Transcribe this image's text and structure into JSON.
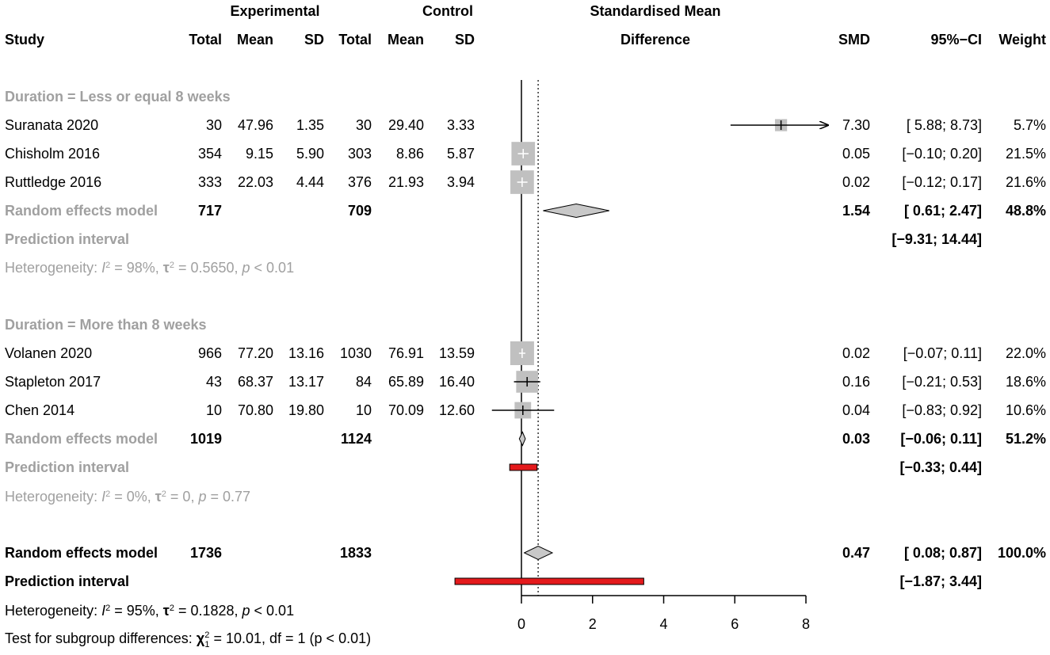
{
  "chart_data": {
    "type": "forest",
    "header": {
      "group_experimental": "Experimental",
      "group_control": "Control",
      "effect_title_line1": "Standardised Mean",
      "effect_title_line2": "Difference",
      "col_study": "Study",
      "col_total": "Total",
      "col_mean": "Mean",
      "col_sd": "SD",
      "col_smd": "SMD",
      "col_ci": "95%−CI",
      "col_weight": "Weight"
    },
    "axis": {
      "xlim": [
        0,
        8
      ],
      "ticks": [
        0,
        2,
        4,
        6,
        8
      ],
      "null_line": 0,
      "pooled_line": 0.47
    },
    "subgroups": [
      {
        "label": "Duration = Less or equal 8 weeks",
        "studies": [
          {
            "name": "Suranata 2020",
            "e_total": "30",
            "e_mean": "47.96",
            "e_sd": "1.35",
            "c_total": "30",
            "c_mean": "29.40",
            "c_sd": "3.33",
            "smd": 7.3,
            "lower": 5.88,
            "upper": 8.73,
            "smd_text": "7.30",
            "ci_text": "[ 5.88;  8.73]",
            "weight_text": "5.7%",
            "weight": 5.7
          },
          {
            "name": "Chisholm 2016",
            "e_total": "354",
            "e_mean": "9.15",
            "e_sd": "5.90",
            "c_total": "303",
            "c_mean": "8.86",
            "c_sd": "5.87",
            "smd": 0.05,
            "lower": -0.1,
            "upper": 0.2,
            "smd_text": "0.05",
            "ci_text": "[−0.10;  0.20]",
            "weight_text": "21.5%",
            "weight": 21.5
          },
          {
            "name": "Ruttledge 2016",
            "e_total": "333",
            "e_mean": "22.03",
            "e_sd": "4.44",
            "c_total": "376",
            "c_mean": "21.93",
            "c_sd": "3.94",
            "smd": 0.02,
            "lower": -0.12,
            "upper": 0.17,
            "smd_text": "0.02",
            "ci_text": "[−0.12;  0.17]",
            "weight_text": "21.6%",
            "weight": 21.6
          }
        ],
        "model": {
          "label": "Random effects model",
          "e_total": "717",
          "c_total": "709",
          "smd": 1.54,
          "lower": 0.61,
          "upper": 2.47,
          "smd_text": "1.54",
          "ci_text": "[ 0.61;  2.47]",
          "weight_text": "48.8%"
        },
        "prediction": {
          "label": "Prediction interval",
          "lower": -9.31,
          "upper": 14.44,
          "ci_text": "[−9.31; 14.44]"
        },
        "heterogeneity": {
          "prefix": "Heterogeneity: ",
          "i2": "98%",
          "tau2": "0.5650",
          "p": "< 0.01"
        }
      },
      {
        "label": "Duration = More than 8 weeks",
        "studies": [
          {
            "name": "Volanen 2020",
            "e_total": "966",
            "e_mean": "77.20",
            "e_sd": "13.16",
            "c_total": "1030",
            "c_mean": "76.91",
            "c_sd": "13.59",
            "smd": 0.02,
            "lower": -0.07,
            "upper": 0.11,
            "smd_text": "0.02",
            "ci_text": "[−0.07;  0.11]",
            "weight_text": "22.0%",
            "weight": 22.0
          },
          {
            "name": "Stapleton 2017",
            "e_total": "43",
            "e_mean": "68.37",
            "e_sd": "13.17",
            "c_total": "84",
            "c_mean": "65.89",
            "c_sd": "16.40",
            "smd": 0.16,
            "lower": -0.21,
            "upper": 0.53,
            "smd_text": "0.16",
            "ci_text": "[−0.21;  0.53]",
            "weight_text": "18.6%",
            "weight": 18.6
          },
          {
            "name": "Chen 2014",
            "e_total": "10",
            "e_mean": "70.80",
            "e_sd": "19.80",
            "c_total": "10",
            "c_mean": "70.09",
            "c_sd": "12.60",
            "smd": 0.04,
            "lower": -0.83,
            "upper": 0.92,
            "smd_text": "0.04",
            "ci_text": "[−0.83;  0.92]",
            "weight_text": "10.6%",
            "weight": 10.6
          }
        ],
        "model": {
          "label": "Random effects model",
          "e_total": "1019",
          "c_total": "1124",
          "smd": 0.03,
          "lower": -0.06,
          "upper": 0.11,
          "smd_text": "0.03",
          "ci_text": "[−0.06;  0.11]",
          "weight_text": "51.2%"
        },
        "prediction": {
          "label": "Prediction interval",
          "lower": -0.33,
          "upper": 0.44,
          "ci_text": "[−0.33;  0.44]"
        },
        "heterogeneity": {
          "prefix": "Heterogeneity: ",
          "i2": "0%",
          "tau2": "0",
          "p": "= 0.77"
        }
      }
    ],
    "overall": {
      "model": {
        "label": "Random effects model",
        "e_total": "1736",
        "c_total": "1833",
        "smd": 0.47,
        "lower": 0.08,
        "upper": 0.87,
        "smd_text": "0.47",
        "ci_text": "[ 0.08;  0.87]",
        "weight_text": "100.0%"
      },
      "prediction": {
        "label": "Prediction interval",
        "lower": -1.87,
        "upper": 3.44,
        "ci_text": "[−1.87;  3.44]"
      },
      "heterogeneity": {
        "prefix": "Heterogeneity: ",
        "i2": "95%",
        "tau2": "0.1828",
        "p": "< 0.01"
      },
      "subgroup_test": {
        "prefix": "Test for subgroup differences: ",
        "chi2": "10.01",
        "df": "df = 1",
        "p": "(p < 0.01)"
      }
    },
    "colors": {
      "text": "#000000",
      "subgroup_text": "#a0a0a0",
      "study_box": "#c0c0c0",
      "diamond": "#c8c8c8",
      "prediction_bar": "#e41a1c"
    }
  }
}
